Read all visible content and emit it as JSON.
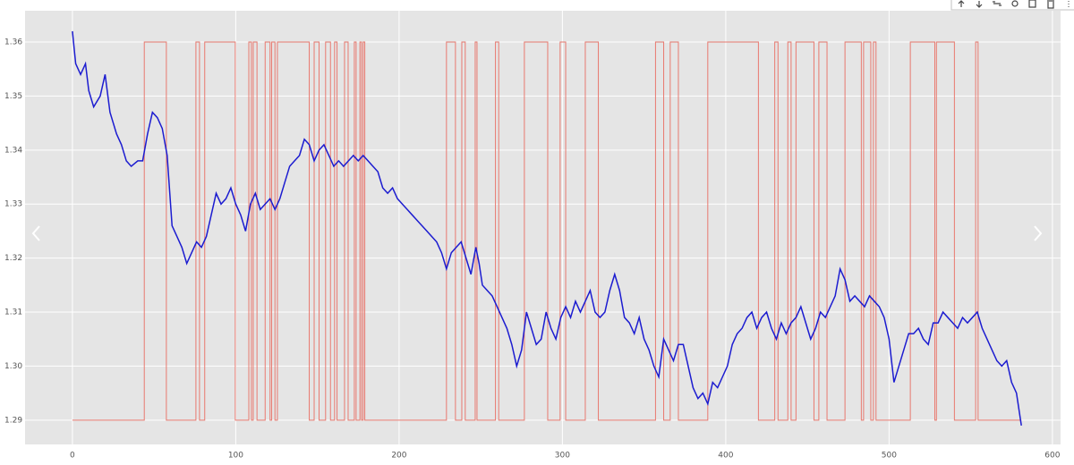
{
  "chart_data": {
    "type": "line",
    "xlim": [
      -29,
      605
    ],
    "ylim": [
      1.2855,
      1.3658
    ],
    "xticks": [
      0,
      100,
      200,
      300,
      400,
      500,
      600
    ],
    "yticks": [
      1.29,
      {
        "value": 1.3,
        "label": "1.30"
      },
      1.31,
      1.32,
      1.33,
      1.34,
      1.35,
      1.36
    ],
    "grid": true,
    "series": [
      {
        "color": "#e8796f",
        "x": [
          0,
          44,
          44,
          57.5,
          57.5,
          75.6,
          75.6,
          77.8,
          77.8,
          81,
          81,
          99.7,
          99.7,
          108,
          108,
          109.6,
          109.6,
          110.7,
          110.7,
          113,
          113,
          118,
          118,
          121,
          121,
          122,
          122,
          124,
          124,
          125.5,
          125.5,
          145,
          145,
          148,
          148,
          151,
          151,
          155,
          155,
          158,
          158,
          160.5,
          160.5,
          162,
          162,
          166.6,
          166.6,
          168.8,
          168.8,
          172.6,
          172.6,
          173.7,
          173.7,
          176,
          176,
          177,
          177,
          178,
          178,
          179,
          179,
          229,
          229,
          234.5,
          234.5,
          238.4,
          238.4,
          240.5,
          240.5,
          246.6,
          246.6,
          247.7,
          247.7,
          259,
          259,
          261,
          261,
          276.7,
          276.7,
          291,
          291,
          298.6,
          298.6,
          302,
          302,
          314,
          314,
          322,
          322,
          357,
          357,
          362,
          362,
          366,
          366,
          371,
          371,
          389,
          389,
          420,
          420,
          430,
          430,
          432,
          432,
          438,
          438,
          440,
          440,
          443,
          443,
          454,
          454,
          457,
          457,
          462,
          462,
          473,
          473,
          483,
          483,
          484.4,
          484.4,
          488.8,
          488.8,
          490.4,
          490.4,
          492,
          492,
          513,
          513,
          528,
          528,
          529,
          529,
          540,
          540,
          553,
          553,
          554.5,
          554.5,
          581
        ],
        "values": [
          1.29,
          1.29,
          1.36,
          1.36,
          1.29,
          1.29,
          1.36,
          1.36,
          1.29,
          1.29,
          1.36,
          1.36,
          1.29,
          1.29,
          1.36,
          1.36,
          1.29,
          1.29,
          1.36,
          1.36,
          1.29,
          1.29,
          1.36,
          1.36,
          1.29,
          1.29,
          1.36,
          1.36,
          1.29,
          1.29,
          1.36,
          1.36,
          1.29,
          1.29,
          1.36,
          1.36,
          1.29,
          1.29,
          1.36,
          1.36,
          1.29,
          1.29,
          1.36,
          1.36,
          1.29,
          1.29,
          1.36,
          1.36,
          1.29,
          1.29,
          1.36,
          1.36,
          1.29,
          1.29,
          1.36,
          1.36,
          1.29,
          1.29,
          1.36,
          1.36,
          1.29,
          1.29,
          1.36,
          1.36,
          1.29,
          1.29,
          1.36,
          1.36,
          1.29,
          1.29,
          1.36,
          1.36,
          1.29,
          1.29,
          1.36,
          1.36,
          1.29,
          1.29,
          1.36,
          1.36,
          1.29,
          1.29,
          1.36,
          1.36,
          1.29,
          1.29,
          1.36,
          1.36,
          1.29,
          1.29,
          1.36,
          1.36,
          1.29,
          1.29,
          1.36,
          1.36,
          1.29,
          1.29,
          1.36,
          1.36,
          1.29,
          1.29,
          1.36,
          1.36,
          1.29,
          1.29,
          1.36,
          1.36,
          1.29,
          1.29,
          1.36,
          1.36,
          1.29,
          1.29,
          1.36,
          1.36,
          1.29,
          1.29,
          1.36,
          1.36,
          1.29,
          1.29,
          1.36,
          1.36,
          1.29,
          1.29,
          1.36,
          1.36,
          1.29,
          1.29,
          1.36,
          1.36,
          1.29,
          1.29,
          1.36,
          1.36,
          1.29,
          1.29,
          1.36,
          1.36,
          1.29,
          1.29
        ]
      },
      {
        "color": "#1c1cd0",
        "x": [
          0,
          2,
          5,
          8,
          10,
          13,
          17,
          20,
          23,
          27,
          30,
          33,
          36,
          40,
          43,
          46,
          49,
          52,
          55,
          58,
          61,
          64,
          67,
          70,
          73,
          76,
          79,
          82,
          85,
          88,
          91,
          94,
          97,
          100,
          103,
          106,
          109,
          112,
          115,
          118,
          121,
          124,
          127,
          130,
          133,
          136,
          139,
          142,
          145,
          148,
          151,
          154,
          157,
          160,
          163,
          166,
          169,
          172,
          175,
          178,
          181,
          184,
          187,
          190,
          193,
          196,
          199,
          202,
          205,
          208,
          211,
          214,
          217,
          220,
          223,
          226,
          229,
          232,
          235,
          238,
          241,
          244,
          247,
          249,
          251,
          254,
          257,
          260,
          263,
          266,
          269,
          272,
          275,
          278,
          281,
          284,
          287,
          290,
          293,
          296,
          299,
          302,
          305,
          308,
          311,
          314,
          317,
          320,
          323,
          326,
          329,
          332,
          335,
          338,
          341,
          344,
          347,
          350,
          353,
          356,
          359,
          362,
          365,
          368,
          371,
          374,
          377,
          380,
          383,
          386,
          389,
          392,
          395,
          398,
          401,
          404,
          407,
          410,
          413,
          416,
          419,
          422,
          425,
          428,
          431,
          434,
          437,
          440,
          443,
          446,
          449,
          452,
          455,
          458,
          461,
          464,
          467,
          470,
          473,
          476,
          479,
          482,
          485,
          488,
          491,
          494,
          497,
          500,
          503,
          506,
          509,
          512,
          515,
          518,
          521,
          524,
          527,
          530,
          533,
          536,
          539,
          542,
          545,
          548,
          551,
          554,
          557,
          560,
          563,
          566,
          569,
          572,
          575,
          578,
          581
        ],
        "values": [
          1.362,
          1.356,
          1.354,
          1.356,
          1.351,
          1.348,
          1.35,
          1.354,
          1.347,
          1.343,
          1.341,
          1.338,
          1.337,
          1.338,
          1.338,
          1.343,
          1.347,
          1.346,
          1.344,
          1.339,
          1.326,
          1.324,
          1.322,
          1.319,
          1.321,
          1.323,
          1.322,
          1.324,
          1.328,
          1.332,
          1.33,
          1.331,
          1.333,
          1.33,
          1.328,
          1.325,
          1.33,
          1.332,
          1.329,
          1.33,
          1.331,
          1.329,
          1.331,
          1.334,
          1.337,
          1.338,
          1.339,
          1.342,
          1.341,
          1.338,
          1.34,
          1.341,
          1.339,
          1.337,
          1.338,
          1.337,
          1.338,
          1.339,
          1.338,
          1.339,
          1.338,
          1.337,
          1.336,
          1.333,
          1.332,
          1.333,
          1.331,
          1.33,
          1.329,
          1.328,
          1.327,
          1.326,
          1.325,
          1.324,
          1.323,
          1.321,
          1.318,
          1.321,
          1.322,
          1.323,
          1.32,
          1.317,
          1.322,
          1.319,
          1.315,
          1.314,
          1.313,
          1.311,
          1.309,
          1.307,
          1.304,
          1.3,
          1.303,
          1.31,
          1.307,
          1.304,
          1.305,
          1.31,
          1.307,
          1.305,
          1.309,
          1.311,
          1.309,
          1.312,
          1.31,
          1.312,
          1.314,
          1.31,
          1.309,
          1.31,
          1.314,
          1.317,
          1.314,
          1.309,
          1.308,
          1.306,
          1.309,
          1.305,
          1.303,
          1.3,
          1.298,
          1.305,
          1.303,
          1.301,
          1.304,
          1.304,
          1.3,
          1.296,
          1.294,
          1.295,
          1.293,
          1.297,
          1.296,
          1.298,
          1.3,
          1.304,
          1.306,
          1.307,
          1.309,
          1.31,
          1.307,
          1.309,
          1.31,
          1.307,
          1.305,
          1.308,
          1.306,
          1.308,
          1.309,
          1.311,
          1.308,
          1.305,
          1.307,
          1.31,
          1.309,
          1.311,
          1.313,
          1.318,
          1.316,
          1.312,
          1.313,
          1.312,
          1.311,
          1.313,
          1.312,
          1.311,
          1.309,
          1.305,
          1.297,
          1.3,
          1.303,
          1.306,
          1.306,
          1.307,
          1.305,
          1.304,
          1.308,
          1.308,
          1.31,
          1.309,
          1.308,
          1.307,
          1.309,
          1.308,
          1.309,
          1.31,
          1.307,
          1.305,
          1.303,
          1.301,
          1.3,
          1.301,
          1.297,
          1.295,
          1.289
        ]
      }
    ]
  }
}
